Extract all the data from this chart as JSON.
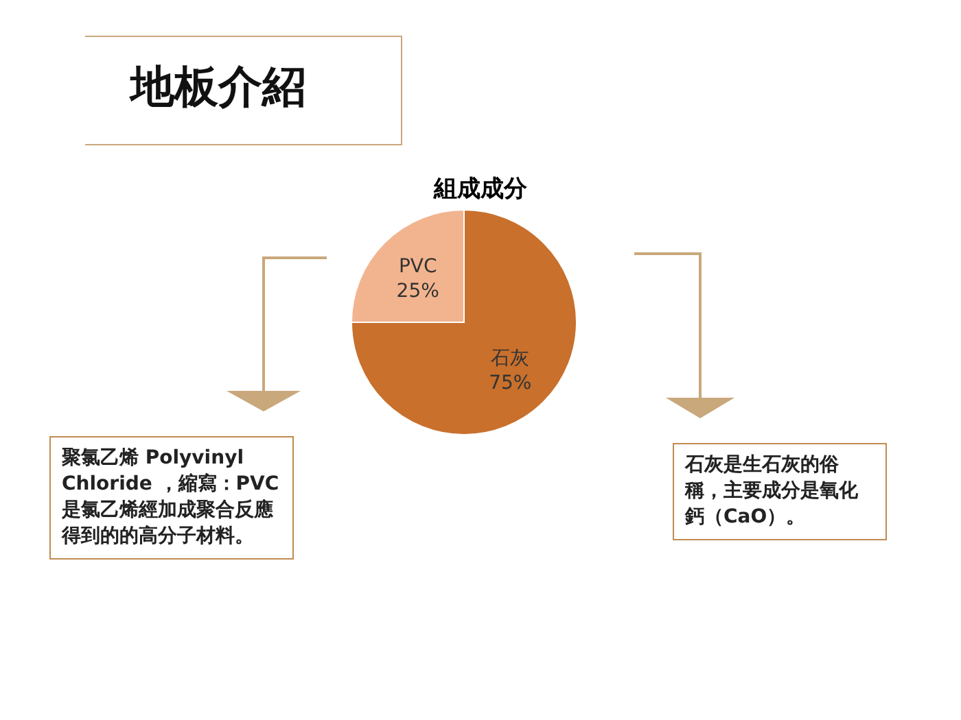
{
  "chart_data": {
    "type": "pie",
    "title": "地板介紹",
    "subtitle": "組成成分",
    "categories": [
      "PVC",
      "石灰"
    ],
    "values": [
      25,
      75
    ],
    "value_labels": [
      "25%",
      "75%"
    ],
    "colors": [
      "#f2b48e",
      "#c8702c"
    ],
    "data_labels": true,
    "annotations": [
      "聚氯乙烯 Polyvinyl Chloride ，縮寫：PVC 是氯乙烯經加成聚合反應得到的的高分子材料。",
      "石灰是生石灰的俗稱，主要成分是氧化鈣（CaO）。"
    ]
  }
}
